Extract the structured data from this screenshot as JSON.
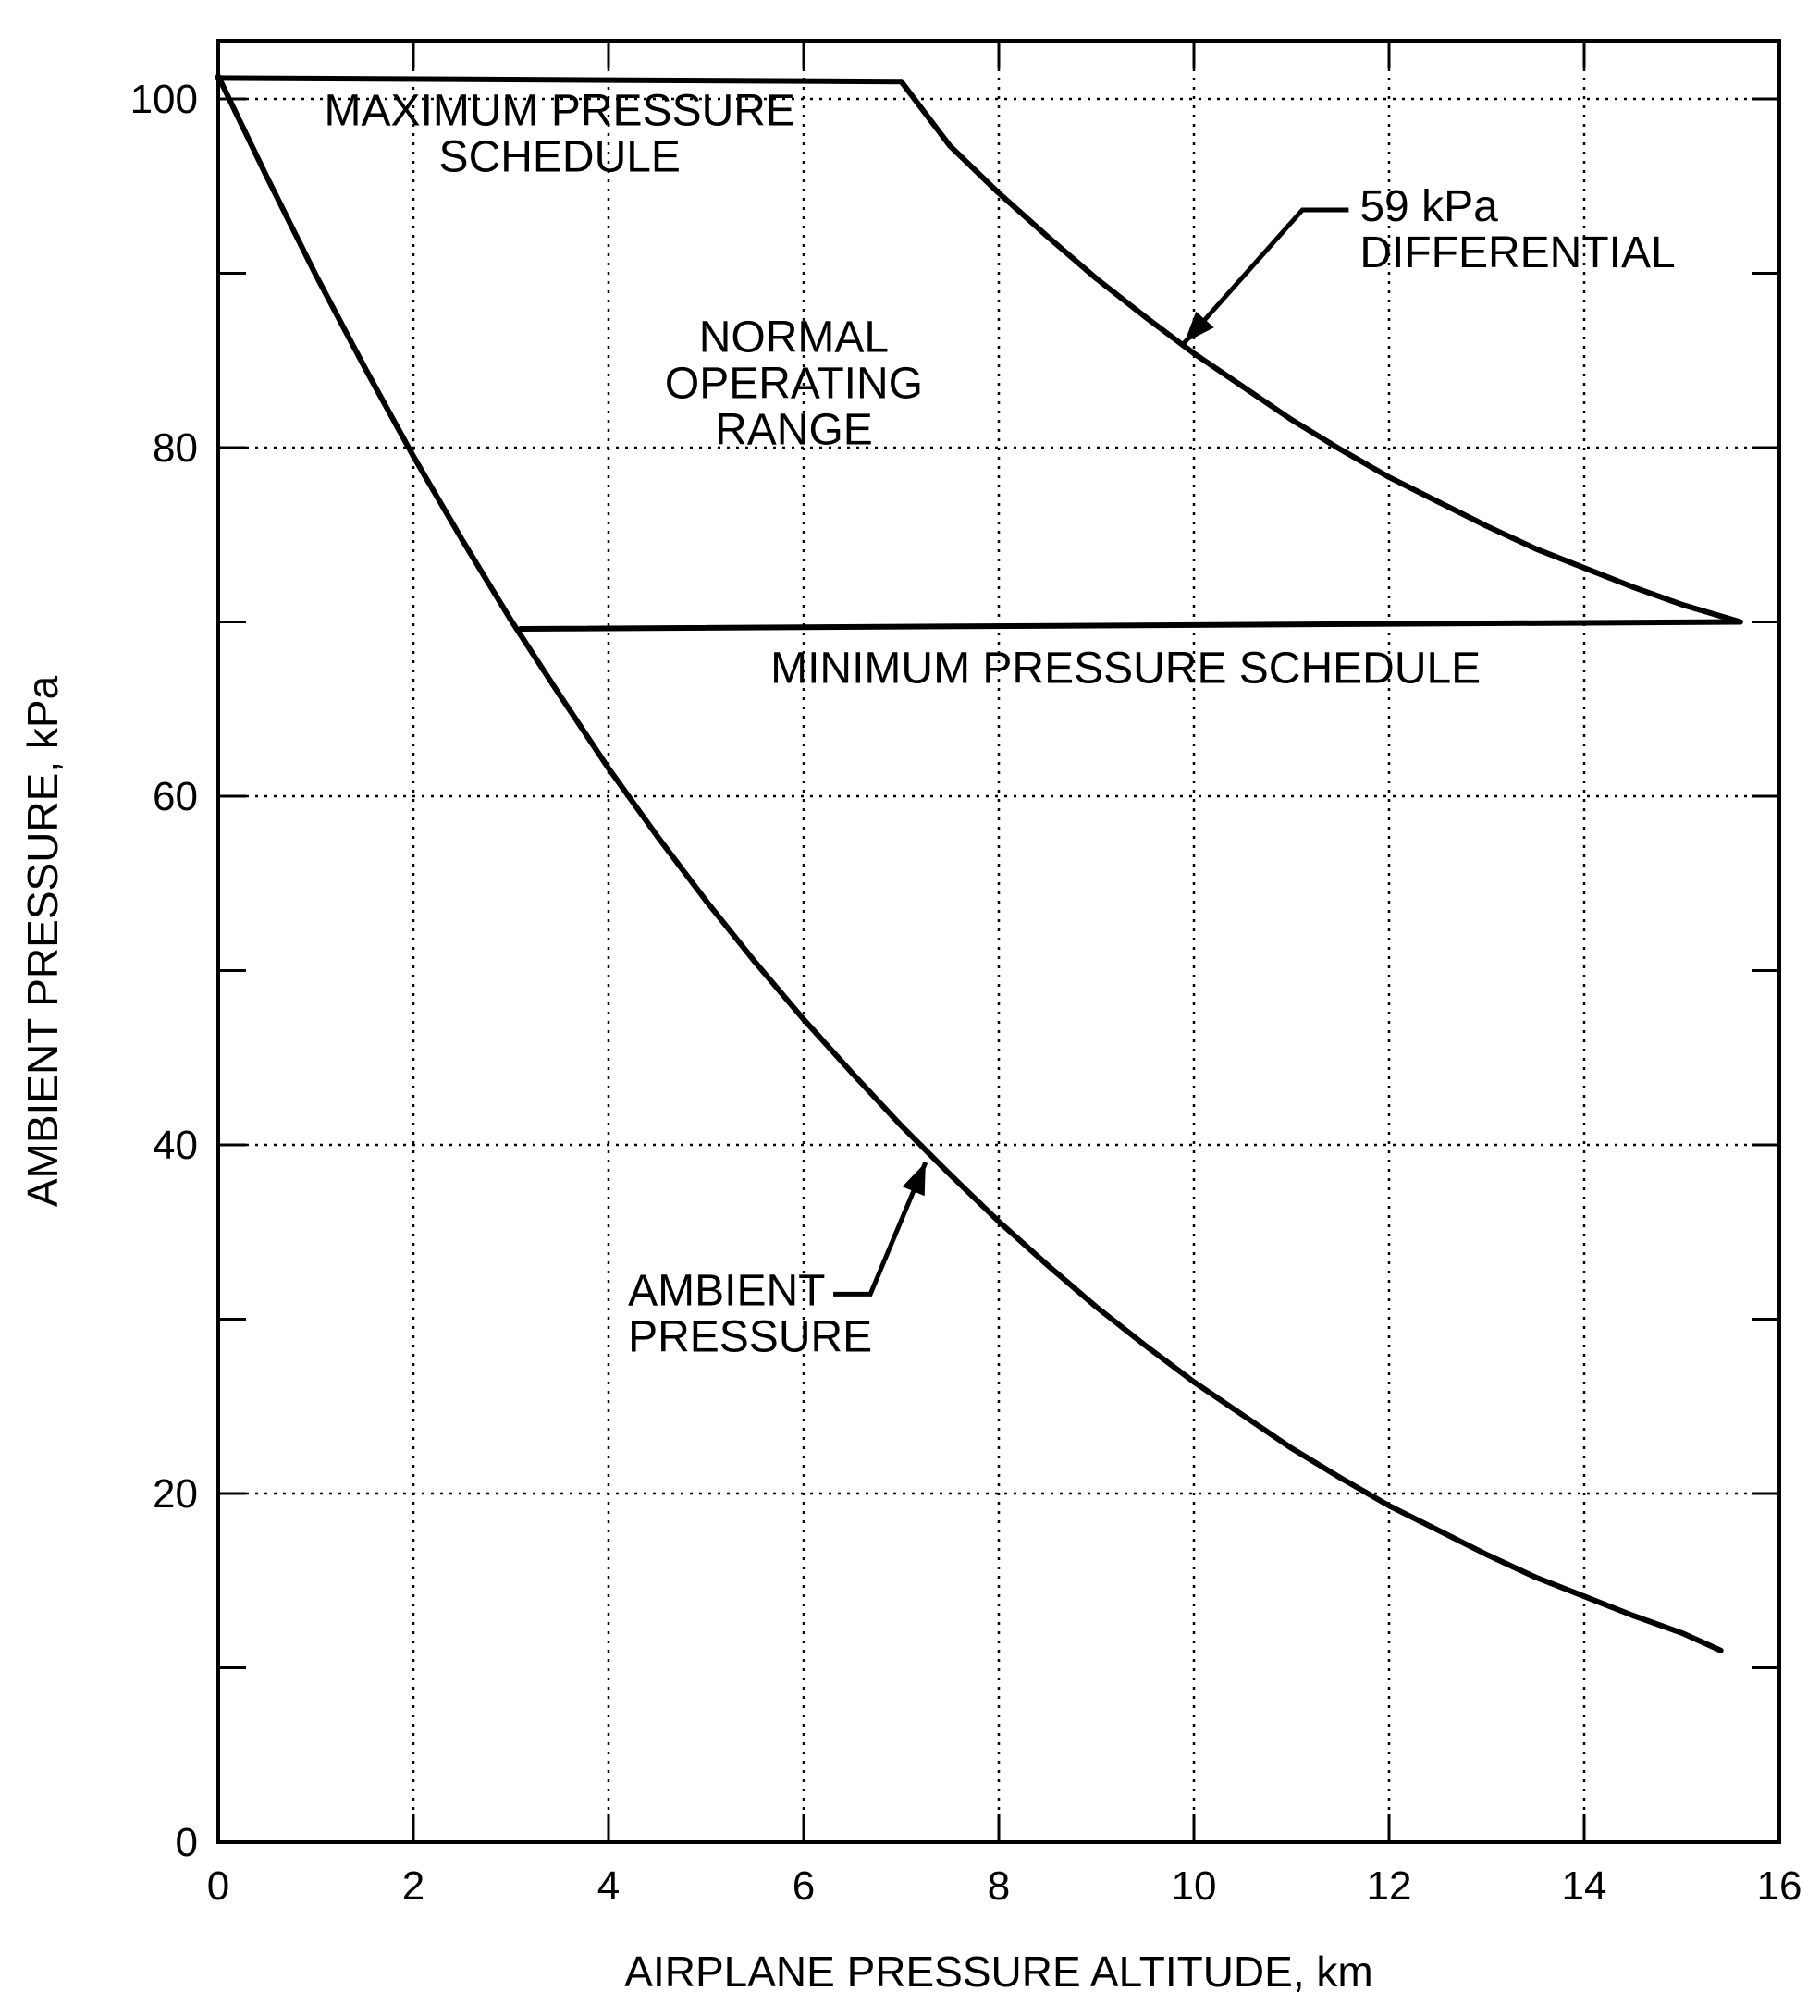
{
  "chart_data": {
    "type": "line",
    "title": "",
    "xlabel": "AIRPLANE PRESSURE ALTITUDE, km",
    "ylabel": "AMBIENT PRESSURE, kPa",
    "xlim": [
      0,
      16
    ],
    "ylim": [
      0,
      105
    ],
    "x_ticks": [
      0,
      2,
      4,
      6,
      8,
      10,
      12,
      14,
      16
    ],
    "y_ticks": [
      0,
      20,
      40,
      60,
      80,
      100
    ],
    "y_minor_ticks": [
      10,
      30,
      50,
      70,
      90
    ],
    "grid": true,
    "legend": "none",
    "series": [
      {
        "name": "AMBIENT PRESSURE",
        "x": [
          0,
          0.5,
          1,
          1.5,
          2,
          2.5,
          3,
          3.5,
          4,
          4.5,
          5,
          5.5,
          6,
          6.5,
          7,
          7.5,
          8,
          8.5,
          9,
          9.5,
          10,
          10.5,
          11,
          11.5,
          12,
          12.5,
          13,
          13.5,
          14,
          14.5,
          15,
          15.4
        ],
        "y": [
          101.3,
          95.5,
          89.9,
          84.6,
          79.5,
          74.7,
          70.1,
          65.8,
          61.6,
          57.7,
          54.0,
          50.5,
          47.2,
          44.1,
          41.1,
          38.3,
          35.6,
          33.1,
          30.7,
          28.5,
          26.4,
          24.5,
          22.6,
          20.9,
          19.3,
          17.9,
          16.5,
          15.2,
          14.1,
          13.0,
          12.0,
          11.0
        ]
      },
      {
        "name": "MAXIMUM PRESSURE SCHEDULE",
        "x": [
          0,
          7.0
        ],
        "y": [
          101.2,
          101.0
        ]
      },
      {
        "name": "59 kPa DIFFERENTIAL",
        "x": [
          7.0,
          7.5,
          8,
          8.5,
          9,
          9.5,
          10,
          10.5,
          11,
          11.5,
          12,
          12.5,
          13,
          13.5,
          14,
          14.5,
          15,
          15.6
        ],
        "y": [
          101.0,
          97.3,
          94.6,
          92.1,
          89.7,
          87.5,
          85.4,
          83.5,
          81.6,
          79.9,
          78.3,
          76.9,
          75.5,
          74.2,
          73.1,
          72.0,
          71.0,
          70.0
        ]
      },
      {
        "name": "MINIMUM PRESSURE SCHEDULE",
        "x": [
          3.1,
          15.6
        ],
        "y": [
          69.6,
          70.0
        ]
      }
    ],
    "annotations": [
      {
        "id": "max-sched",
        "lines": [
          "MAXIMUM PRESSURE",
          "SCHEDULE"
        ],
        "x": 3.5,
        "y": 98.5
      },
      {
        "id": "normal-range",
        "lines": [
          "NORMAL",
          "OPERATING",
          "RANGE"
        ],
        "x": 5.9,
        "y": 85.5
      },
      {
        "id": "differential",
        "lines": [
          "59 kPa",
          "DIFFERENTIAL"
        ],
        "x": 11.7,
        "y": 93.0,
        "align": "left",
        "arrow_to": [
          9.9,
          86.0
        ]
      },
      {
        "id": "min-sched",
        "lines": [
          "MINIMUM PRESSURE SCHEDULE"
        ],
        "x": 9.3,
        "y": 66.5
      },
      {
        "id": "ambient",
        "lines": [
          "AMBIENT",
          "PRESSURE"
        ],
        "x": 4.2,
        "y": 30.8,
        "align": "left",
        "arrow_to": [
          7.25,
          39.0
        ]
      }
    ]
  }
}
